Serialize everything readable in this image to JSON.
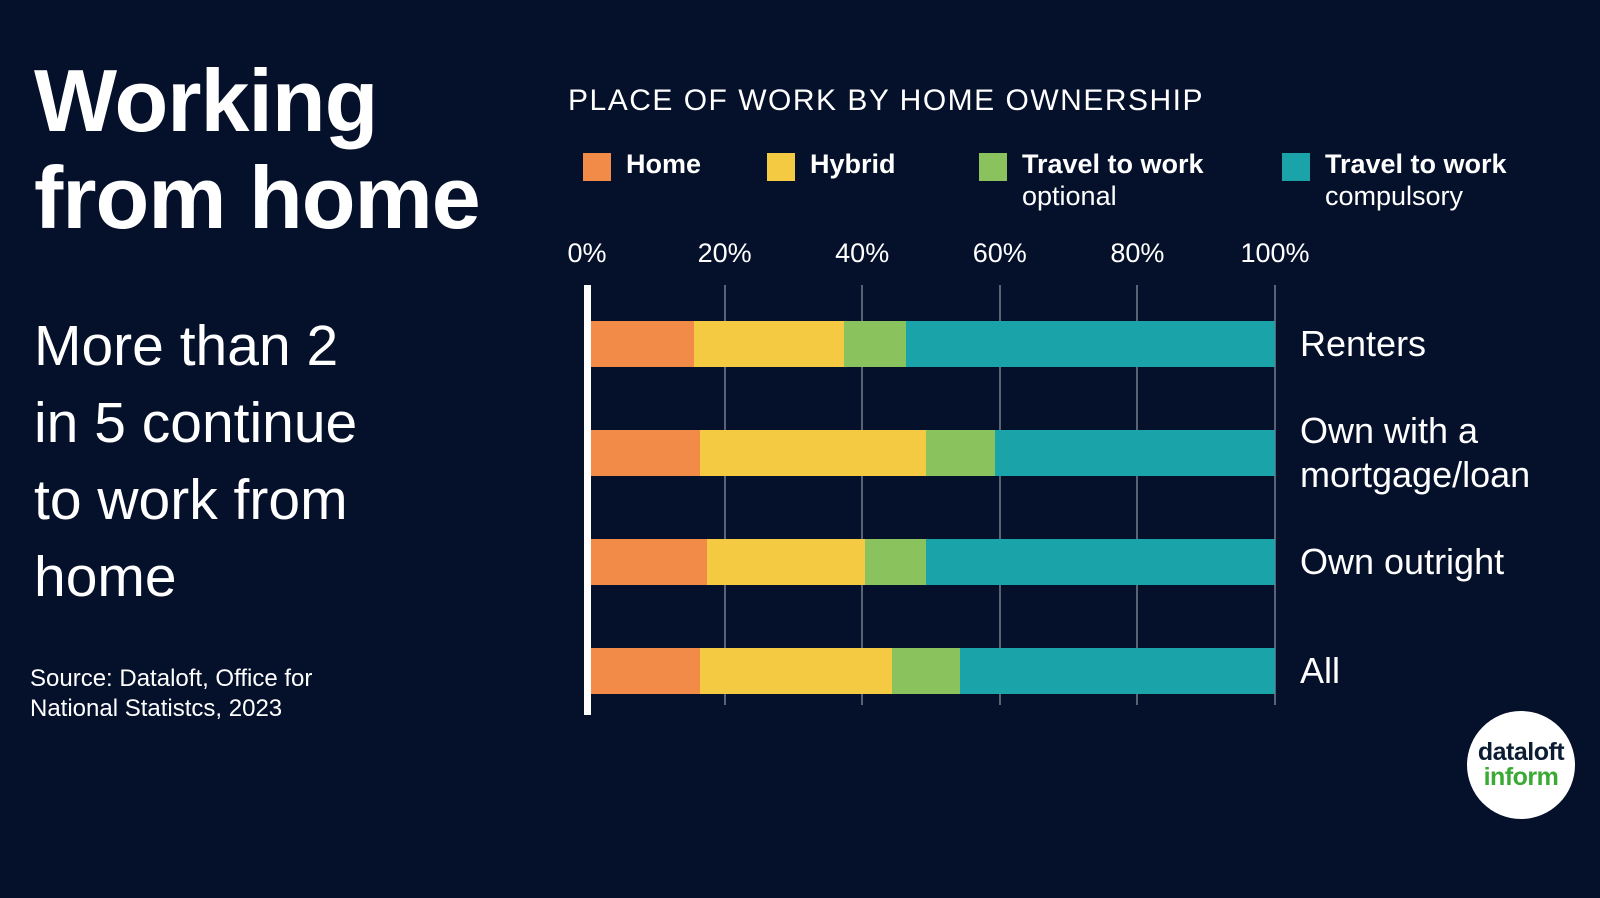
{
  "page": {
    "background_color": "#05102a"
  },
  "left_panel": {
    "title": "Working\nfrom home",
    "subtitle": "More than 2\nin 5 continue\nto work from\nhome",
    "source": "Source: Dataloft, Office for\nNational Statistcs, 2023"
  },
  "chart": {
    "title": "PLACE OF WORK BY HOME OWNERSHIP",
    "legend": [
      {
        "label": "Home",
        "sublabel": "",
        "color": "#f28b47"
      },
      {
        "label": "Hybrid",
        "sublabel": "",
        "color": "#f5ca43"
      },
      {
        "label": "Travel to work",
        "sublabel": "optional",
        "color": "#8ac25d"
      },
      {
        "label": "Travel to work",
        "sublabel": "compulsory",
        "color": "#1aa3a8"
      }
    ],
    "x_ticks": [
      "0%",
      "20%",
      "40%",
      "60%",
      "80%",
      "100%"
    ]
  },
  "chart_data": {
    "type": "bar",
    "orientation": "horizontal",
    "stacked": true,
    "title": "PLACE OF WORK BY HOME OWNERSHIP",
    "categories": [
      "Renters",
      "Own with a\nmortgage/loan",
      "Own outright",
      "All"
    ],
    "series": [
      {
        "name": "Home",
        "color": "#f28b47",
        "values": [
          15,
          16,
          17,
          16
        ]
      },
      {
        "name": "Hybrid",
        "color": "#f5ca43",
        "values": [
          22,
          33,
          23,
          28
        ]
      },
      {
        "name": "Travel to work optional",
        "color": "#8ac25d",
        "values": [
          9,
          10,
          9,
          10
        ]
      },
      {
        "name": "Travel to work compulsory",
        "color": "#1aa3a8",
        "values": [
          54,
          41,
          51,
          46
        ]
      }
    ],
    "xlim": [
      0,
      100
    ],
    "x_tick_percent": [
      0,
      20,
      40,
      60,
      80,
      100
    ],
    "unit": "%",
    "grid": true,
    "legend_position": "top"
  },
  "logo": {
    "line1": "dataloft",
    "line2": "inform",
    "line1_color": "#0b1c33",
    "line2_color": "#3aaa35"
  }
}
